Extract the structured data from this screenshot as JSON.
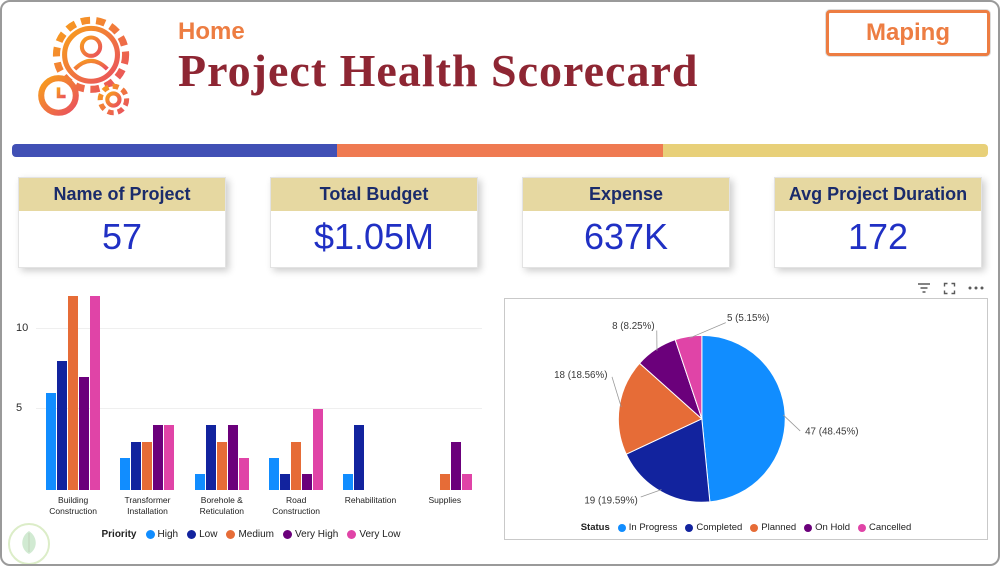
{
  "header": {
    "home": "Home",
    "title": "Project Health Scorecard",
    "maping": "Maping",
    "logo_icon": "gear-person-clock-logo"
  },
  "colors": {
    "accent_orange": "#ED7D42",
    "title_maroon": "#8E2633",
    "kpi_header_bg": "#E6D8A1",
    "kpi_header_text": "#1A2B6B",
    "kpi_value_blue": "#2030C4",
    "divider_blue": "#4150B5",
    "divider_orange": "#EF7A52",
    "divider_khaki": "#E8D079"
  },
  "kpis": [
    {
      "label": "Name of Project",
      "value": "57"
    },
    {
      "label": "Total Budget",
      "value": "$1.05M"
    },
    {
      "label": "Expense",
      "value": "637K"
    },
    {
      "label": "Avg Project Duration",
      "value": "172"
    }
  ],
  "visual_header_icons": [
    "filter-icon",
    "focus-mode-icon",
    "more-options-icon"
  ],
  "chart_data": [
    {
      "type": "bar",
      "title": "",
      "legend_title": "Priority",
      "categories": [
        "Building Construction",
        "Transformer Installation",
        "Borehole & Reticulation",
        "Road Construction",
        "Rehabilitation",
        "Supplies"
      ],
      "series": [
        {
          "name": "High",
          "color": "#118DFF",
          "values": [
            6,
            2,
            1,
            2,
            1,
            0
          ]
        },
        {
          "name": "Low",
          "color": "#12239E",
          "values": [
            8,
            3,
            4,
            1,
            4,
            0
          ]
        },
        {
          "name": "Medium",
          "color": "#E66C37",
          "values": [
            12,
            3,
            3,
            3,
            0,
            1
          ]
        },
        {
          "name": "Very High",
          "color": "#6B007B",
          "values": [
            7,
            4,
            4,
            1,
            0,
            3
          ]
        },
        {
          "name": "Very Low",
          "color": "#E044A7",
          "values": [
            12,
            4,
            2,
            5,
            0,
            1
          ]
        }
      ],
      "ylim": [
        0,
        12.4
      ],
      "yticks": [
        5,
        10
      ],
      "grid": true,
      "legend_position": "bottom"
    },
    {
      "type": "pie",
      "legend_title": "Status",
      "slices": [
        {
          "name": "In Progress",
          "value": 47,
          "pct": "48.45%",
          "label": "47 (48.45%)",
          "color": "#118DFF"
        },
        {
          "name": "Completed",
          "value": 19,
          "pct": "19.59%",
          "label": "19 (19.59%)",
          "color": "#12239E"
        },
        {
          "name": "Planned",
          "value": 18,
          "pct": "18.56%",
          "label": "18 (18.56%)",
          "color": "#E66C37"
        },
        {
          "name": "On Hold",
          "value": 8,
          "pct": "8.25%",
          "label": "8 (8.25%)",
          "color": "#6B007B"
        },
        {
          "name": "Cancelled",
          "value": 5,
          "pct": "5.15%",
          "label": "5 (5.15%)",
          "color": "#E044A7"
        }
      ],
      "legend_position": "bottom"
    }
  ]
}
